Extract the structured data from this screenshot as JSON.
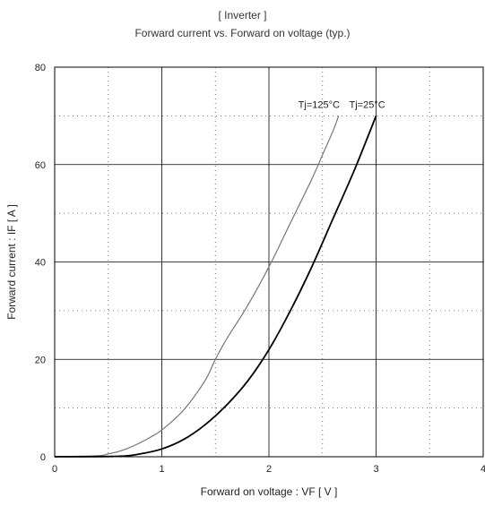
{
  "chart_data": {
    "type": "line",
    "title": "[ Inverter ]",
    "subtitle": "Forward current  vs.  Forward on voltage  (typ.)",
    "xlabel": "Forward on voltage  :  VF  [ V ]",
    "ylabel": "Forward current  :  IF  [ A ]",
    "xlim": [
      0,
      4
    ],
    "ylim": [
      0,
      80
    ],
    "x_ticks": [
      "0",
      "1",
      "2",
      "3",
      "4"
    ],
    "y_ticks": [
      "0",
      "20",
      "40",
      "60",
      "80"
    ],
    "grid": true,
    "series": [
      {
        "name": "Tj=125°C",
        "color": "#777777",
        "x": [
          0,
          0.4,
          0.5,
          0.6,
          0.7,
          0.8,
          0.9,
          1.0,
          1.2,
          1.4,
          1.5,
          1.6,
          1.8,
          2.0,
          2.2,
          2.4,
          2.5,
          2.6,
          2.65
        ],
        "y": [
          0,
          0.2,
          0.6,
          1.1,
          1.9,
          2.9,
          4.1,
          5.5,
          9.5,
          15.5,
          20,
          24,
          31,
          39,
          48,
          57,
          62,
          67,
          70
        ]
      },
      {
        "name": "Tj=25°C",
        "color": "#000000",
        "x": [
          0,
          0.6,
          0.8,
          1.0,
          1.2,
          1.4,
          1.6,
          1.8,
          2.0,
          2.2,
          2.4,
          2.6,
          2.8,
          3.0
        ],
        "y": [
          0,
          0.1,
          0.6,
          1.6,
          3.5,
          6.5,
          10.5,
          15.5,
          22,
          30,
          39,
          49,
          59,
          70
        ]
      }
    ]
  }
}
